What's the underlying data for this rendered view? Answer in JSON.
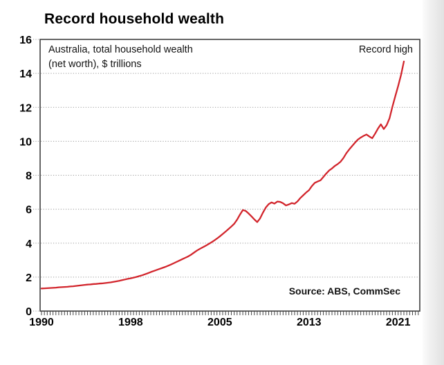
{
  "page": {
    "background": "#ffffff",
    "right_band_gradient": [
      "#fbfbfb",
      "#e2e2e2"
    ]
  },
  "chart": {
    "title": "Record household wealth",
    "subtitle_line1": "Australia, total household wealth",
    "subtitle_line2": "(net worth), $ trillions",
    "annotation": "Record high",
    "source": "Source: ABS, CommSec",
    "line_color": "#d2252c",
    "grid_color": "#9a9a9a",
    "border_color": "#3f3f3f",
    "text_color": "#000000"
  },
  "chart_data": {
    "type": "line",
    "title": "Record household wealth",
    "subtitle": "Australia, total household wealth (net worth), $ trillions",
    "ylabel": "",
    "xlabel": "",
    "unit": "$ trillions",
    "frequency": "quarterly",
    "x_start": "Jun-1990",
    "x_end": "Dec-2021",
    "x_tick_labels": [
      "1990",
      "1998",
      "2005",
      "2013",
      "2021"
    ],
    "x_tick_indices": [
      0,
      31,
      62,
      93,
      124
    ],
    "ylim": [
      0,
      16
    ],
    "y_ticks": [
      0,
      2,
      4,
      6,
      8,
      10,
      12,
      14,
      16
    ],
    "grid": "dotted-horizontal",
    "legend": "none",
    "annotations": [
      {
        "text": "Record high",
        "position": "top-right"
      },
      {
        "text": "Source: ABS, CommSec",
        "position": "bottom-right"
      }
    ],
    "series": [
      {
        "name": "Total household wealth (net worth)",
        "color": "#d2252c",
        "values": [
          1.33,
          1.34,
          1.35,
          1.36,
          1.37,
          1.38,
          1.4,
          1.41,
          1.42,
          1.43,
          1.45,
          1.46,
          1.48,
          1.5,
          1.52,
          1.54,
          1.56,
          1.57,
          1.59,
          1.6,
          1.62,
          1.63,
          1.65,
          1.67,
          1.69,
          1.72,
          1.75,
          1.78,
          1.82,
          1.86,
          1.9,
          1.93,
          1.97,
          2.01,
          2.06,
          2.11,
          2.17,
          2.23,
          2.3,
          2.36,
          2.42,
          2.48,
          2.54,
          2.6,
          2.67,
          2.74,
          2.82,
          2.9,
          2.98,
          3.06,
          3.14,
          3.22,
          3.32,
          3.44,
          3.56,
          3.66,
          3.75,
          3.84,
          3.94,
          4.04,
          4.15,
          4.27,
          4.4,
          4.54,
          4.68,
          4.83,
          4.98,
          5.14,
          5.38,
          5.68,
          5.95,
          5.9,
          5.75,
          5.58,
          5.4,
          5.24,
          5.46,
          5.8,
          6.1,
          6.3,
          6.4,
          6.33,
          6.45,
          6.43,
          6.35,
          6.22,
          6.28,
          6.36,
          6.32,
          6.46,
          6.66,
          6.82,
          6.98,
          7.12,
          7.36,
          7.55,
          7.63,
          7.7,
          7.9,
          8.1,
          8.28,
          8.4,
          8.55,
          8.66,
          8.8,
          9.02,
          9.3,
          9.52,
          9.72,
          9.92,
          10.1,
          10.22,
          10.32,
          10.4,
          10.28,
          10.18,
          10.45,
          10.75,
          11.0,
          10.72,
          10.95,
          11.35,
          12.03,
          12.65,
          13.25,
          13.9,
          14.7
        ]
      }
    ]
  }
}
